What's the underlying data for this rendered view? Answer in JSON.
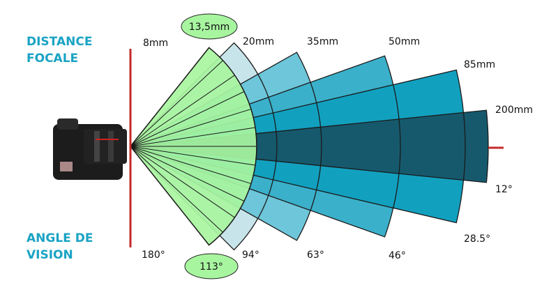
{
  "side_labels": {
    "focal": [
      "DISTANCE",
      "FOCALE"
    ],
    "angle": [
      "ANGLE DE",
      "VISION"
    ]
  },
  "focal_lengths": [
    "8mm",
    "20mm",
    "35mm",
    "50mm",
    "85mm",
    "200mm"
  ],
  "angles": [
    "180°",
    "94°",
    "63°",
    "46°",
    "28.5°",
    "12°"
  ],
  "highlight": {
    "focal": "13,5mm",
    "angle": "113°"
  }
}
